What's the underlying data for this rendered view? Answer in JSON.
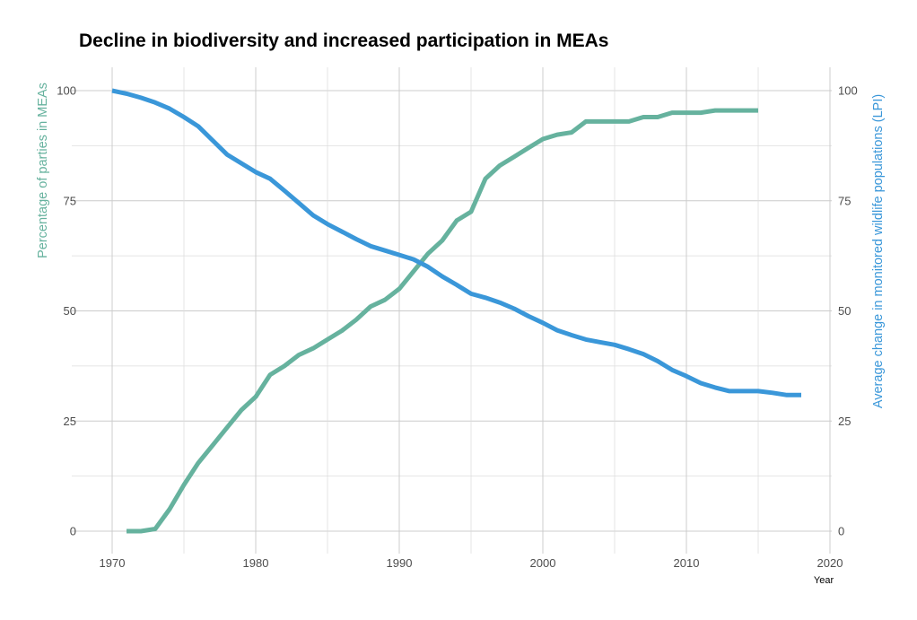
{
  "chart_data": {
    "type": "line",
    "title": "Decline in biodiversity and increased participation in MEAs",
    "xlabel": "Year",
    "ylabel_left": "Percentage of parties in MEAs",
    "ylabel_right": "Average change in monitored wildlife populations (LPI)",
    "xlim": [
      1970,
      2020
    ],
    "ylim": [
      0,
      100
    ],
    "x_ticks": [
      1970,
      1980,
      1990,
      2000,
      2010,
      2020
    ],
    "y_ticks": [
      0,
      25,
      50,
      75,
      100
    ],
    "grid": true,
    "series": [
      {
        "axis": "left",
        "color": "#66b29e",
        "x": [
          1971,
          1972,
          1973,
          1974,
          1975,
          1976,
          1977,
          1978,
          1979,
          1980,
          1981,
          1982,
          1983,
          1984,
          1985,
          1986,
          1987,
          1988,
          1989,
          1990,
          1991,
          1992,
          1993,
          1994,
          1995,
          1996,
          1997,
          1998,
          1999,
          2000,
          2001,
          2002,
          2003,
          2004,
          2005,
          2006,
          2007,
          2008,
          2009,
          2010,
          2011,
          2012,
          2013,
          2014,
          2015
        ],
        "values": [
          0,
          0,
          0.5,
          5,
          10.5,
          15.5,
          19.5,
          23.5,
          27.5,
          30.5,
          35.5,
          37.5,
          40,
          41.5,
          43.5,
          45.5,
          48,
          51,
          52.5,
          55,
          59,
          63,
          66,
          70.5,
          72.5,
          80,
          83,
          85,
          87,
          89,
          90,
          90.5,
          93,
          93,
          93,
          93,
          94,
          94,
          95,
          95,
          95,
          95.5,
          95.5,
          95.5,
          95.5
        ]
      },
      {
        "axis": "right",
        "color": "#3a97d9",
        "x": [
          1970,
          1971,
          1972,
          1973,
          1974,
          1975,
          1976,
          1977,
          1978,
          1979,
          1980,
          1981,
          1982,
          1983,
          1984,
          1985,
          1986,
          1987,
          1988,
          1989,
          1990,
          1991,
          1992,
          1993,
          1994,
          1995,
          1996,
          1997,
          1998,
          1999,
          2000,
          2001,
          2002,
          2003,
          2004,
          2005,
          2006,
          2007,
          2008,
          2009,
          2010,
          2011,
          2012,
          2013,
          2014,
          2015,
          2016,
          2017,
          2018
        ],
        "values": [
          100,
          99.3,
          98.4,
          97.3,
          95.9,
          94,
          91.9,
          88.7,
          85.5,
          83.5,
          81.5,
          80,
          77.3,
          74.5,
          71.7,
          69.7,
          68,
          66.3,
          64.7,
          63.7,
          62.7,
          61.7,
          60,
          57.8,
          55.9,
          53.9,
          53,
          51.9,
          50.5,
          48.8,
          47.3,
          45.6,
          44.5,
          43.5,
          42.9,
          42.3,
          41.3,
          40.2,
          38.6,
          36.6,
          35.2,
          33.6,
          32.6,
          31.8,
          31.8,
          31.8,
          31.4,
          30.9,
          30.9
        ]
      }
    ]
  }
}
